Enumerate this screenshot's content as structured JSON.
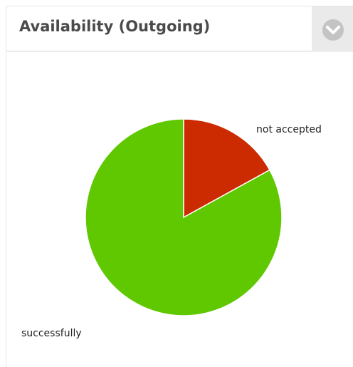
{
  "chart_data": {
    "type": "pie",
    "title": "Availability (Outgoing)",
    "categories": [
      "not accepted",
      "successfully"
    ],
    "values": [
      17,
      83
    ],
    "colors": [
      "#cc2a00",
      "#5fc800"
    ]
  }
}
